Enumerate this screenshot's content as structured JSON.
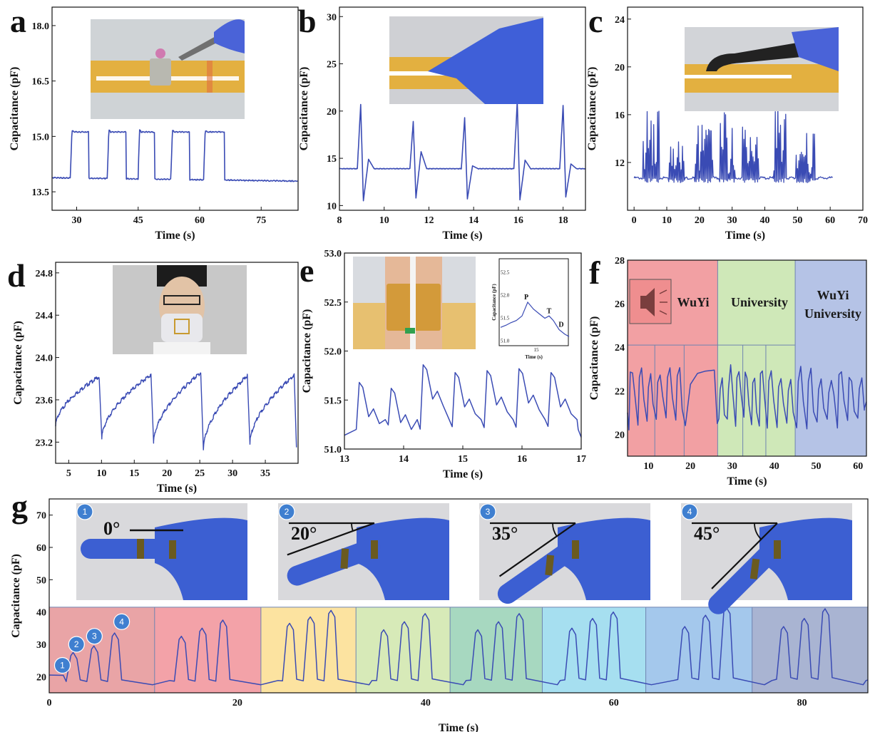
{
  "figure": {
    "panel_letters": [
      "a",
      "b",
      "c",
      "d",
      "e",
      "f",
      "g"
    ]
  },
  "colors": {
    "line": "#3a4bb4",
    "wuyi_region": "#f2a0a3",
    "university_region": "#cfe8b8",
    "wuyi_university_region": "#b5c3e6",
    "g_regions": [
      "#e9a4a6",
      "#f3a2a8",
      "#fce3a0",
      "#d7eab8",
      "#a7d8c0",
      "#a6dff0",
      "#a4c8ec",
      "#a9b4d2"
    ]
  },
  "chart_data": [
    {
      "panel": "a",
      "type": "line",
      "xlabel": "Time (s)",
      "ylabel": "Capacitance (pF)",
      "xlim": [
        24,
        84
      ],
      "ylim": [
        13.0,
        18.5
      ],
      "xticks": [
        30,
        45,
        60,
        75
      ],
      "yticks": [
        13.5,
        15.0,
        16.5,
        18.0
      ],
      "ytick_labels": [
        "13.5",
        "15.0",
        "16.5",
        "18.0"
      ],
      "signal": {
        "kind": "square",
        "x0": 24,
        "x1": 84,
        "baseline": 13.88,
        "high": 15.12,
        "pulses": [
          [
            28.5,
            33.0
          ],
          [
            37.5,
            42.0
          ],
          [
            45.0,
            49.0
          ],
          [
            53.0,
            57.5
          ],
          [
            61.0,
            66.0
          ]
        ]
      },
      "photo_desc_icon": "weight-on-sensor-photo"
    },
    {
      "panel": "b",
      "type": "line",
      "xlabel": "Time (s)",
      "ylabel": "Capacitance (pF)",
      "xlim": [
        8,
        19
      ],
      "ylim": [
        9.5,
        31
      ],
      "xticks": [
        8,
        10,
        12,
        14,
        16,
        18
      ],
      "yticks": [
        10,
        15,
        20,
        25,
        30
      ],
      "signal": {
        "kind": "spikes",
        "x0": 8,
        "x1": 19,
        "baseline": 13.9,
        "events": [
          8.95,
          11.3,
          13.6,
          15.95,
          18.0
        ],
        "peaks": [
          20.7,
          18.9,
          19.3,
          21.0,
          20.6
        ],
        "lows": [
          10.5,
          10.8,
          10.7,
          10.6,
          10.9
        ],
        "after": [
          14.9,
          15.7,
          14.2,
          14.8,
          14.4
        ]
      }
    },
    {
      "panel": "c",
      "type": "line",
      "xlabel": "Time (s)",
      "ylabel": "Capacitance (pF)",
      "xlim": [
        -2,
        70
      ],
      "ylim": [
        8,
        25
      ],
      "xticks": [
        0,
        10,
        20,
        30,
        40,
        50,
        60,
        70
      ],
      "xtick_labels": [
        "0",
        "10",
        "20",
        "30",
        "40",
        "50",
        "60",
        "70"
      ],
      "yticks": [
        12,
        16,
        20,
        24
      ],
      "signal": {
        "kind": "bursts",
        "x0": 0,
        "x1": 61,
        "baseline": 10.7,
        "low": 10.3,
        "bursts": [
          [
            2.5,
            8.0,
            17.5
          ],
          [
            10.5,
            15.5,
            14.0
          ],
          [
            18.5,
            24.0,
            15.8
          ],
          [
            26.0,
            31.0,
            17.5
          ],
          [
            33.0,
            38.0,
            15.5
          ],
          [
            42.5,
            46.5,
            17.5
          ],
          [
            49.5,
            55.5,
            14.5
          ]
        ]
      }
    },
    {
      "panel": "d",
      "type": "line",
      "xlabel": "Time (s)",
      "ylabel": "Capacitance (pF)",
      "xlim": [
        3,
        40
      ],
      "ylim": [
        23.0,
        24.9
      ],
      "xticks": [
        5,
        10,
        15,
        20,
        25,
        30,
        35
      ],
      "yticks": [
        23.2,
        23.6,
        24.0,
        24.4,
        24.8
      ],
      "ytick_labels": [
        "23.2",
        "23.6",
        "24.0",
        "24.4",
        "24.8"
      ],
      "signal": {
        "kind": "sawtooth",
        "x0": 3,
        "x1": 39.5,
        "drops": [
          9.7,
          17.6,
          25.2,
          32.3,
          39.4
        ],
        "peaks": [
          23.82,
          23.84,
          23.86,
          23.83,
          23.83
        ],
        "lows": [
          23.23,
          23.19,
          23.13,
          23.18,
          23.15
        ]
      }
    },
    {
      "panel": "e",
      "type": "line",
      "xlabel": "Time (s)",
      "ylabel": "Capacitance (pF)",
      "xlim": [
        13,
        17
      ],
      "ylim": [
        51.0,
        53.0
      ],
      "xticks": [
        13,
        14,
        15,
        16,
        17
      ],
      "yticks": [
        51.0,
        51.5,
        52.0,
        52.5,
        53.0
      ],
      "ytick_labels": [
        "51.0",
        "51.5",
        "52.0",
        "52.5",
        "53.0"
      ],
      "signal": {
        "kind": "pulse",
        "x0": 13,
        "x1": 17,
        "start": 13.25,
        "period": 0.54,
        "beats": 7,
        "peaks": [
          51.68,
          51.62,
          51.86,
          51.78,
          51.8,
          51.82,
          51.78
        ],
        "trough": 51.2
      },
      "inset": {
        "xlabel": "Time (s)",
        "ylabel": "Capacitance (pF)",
        "xtick": "15",
        "yticks": [
          "51.0",
          "51.5",
          "52.0",
          "52.5"
        ],
        "points": [
          "P",
          "T",
          "D"
        ]
      }
    },
    {
      "panel": "f",
      "type": "line",
      "xlabel": "Time (s)",
      "ylabel": "Capacitance (pF)",
      "xlim": [
        5,
        62
      ],
      "ylim": [
        19,
        28
      ],
      "xticks": [
        10,
        20,
        30,
        40,
        50,
        60
      ],
      "yticks": [
        20,
        22,
        24,
        26,
        28
      ],
      "regions": [
        {
          "label": "WuYi",
          "x0": 5,
          "x1": 26.5
        },
        {
          "label": "University",
          "x0": 26.5,
          "x1": 45
        },
        {
          "label": "WuYi\nUniversity",
          "x0": 45,
          "x1": 62
        }
      ],
      "region_labels": [
        "WuYi",
        "University",
        "WuYi",
        "University"
      ],
      "sub_dividers": [
        11.5,
        18.5,
        32.5,
        38
      ],
      "icon": "speaker-icon"
    },
    {
      "panel": "g",
      "type": "line",
      "xlabel": "Time (s)",
      "ylabel": "Capacitance (pF)",
      "xlim": [
        0,
        87
      ],
      "ylim": [
        15,
        75
      ],
      "xticks": [
        0,
        20,
        40,
        60,
        80
      ],
      "yticks": [
        20,
        30,
        40,
        50,
        60,
        70
      ],
      "cycle_starts": [
        1.5,
        13,
        24.5,
        34.5,
        44.5,
        54.5,
        66.5,
        77
      ],
      "cycle_peaks": [
        [
          27.5,
          29.5,
          33.5
        ],
        [
          32.5,
          35.0,
          37.5
        ],
        [
          36.5,
          38.5,
          40.5
        ],
        [
          34.5,
          37.0,
          39.5
        ],
        [
          34.5,
          37.0,
          39.5
        ],
        [
          35.0,
          38.0,
          40.0
        ],
        [
          35.5,
          39.0,
          41.5
        ],
        [
          35.5,
          38.0,
          41.0
        ]
      ],
      "region_bounds": [
        0,
        11.2,
        22.5,
        32.6,
        42.6,
        52.4,
        63.4,
        74.7,
        87
      ],
      "angles": [
        "0°",
        "20°",
        "35°",
        "45°"
      ],
      "badges": [
        "1",
        "2",
        "3",
        "4"
      ]
    }
  ]
}
